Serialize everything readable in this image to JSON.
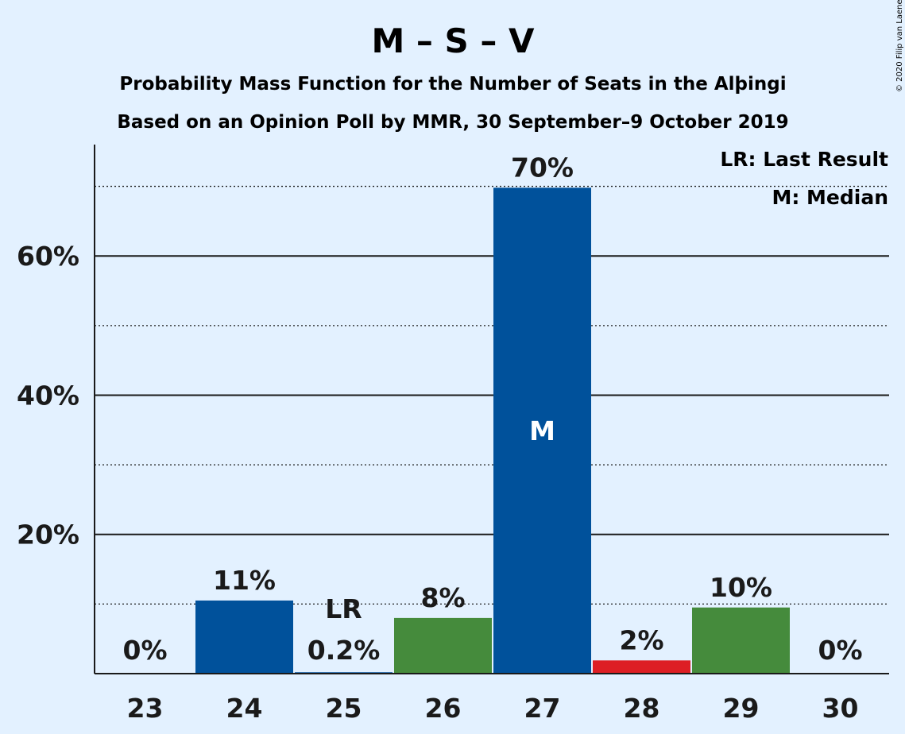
{
  "chart_data": {
    "type": "bar",
    "title": "M – S – V",
    "subtitle_1": "Probability Mass Function for the Number of Seats in the Alþingi",
    "subtitle_2": "Based on an Opinion Poll by MMR, 30 September–9 October 2019",
    "copyright": "© 2020 Filip van Laenen",
    "categories": [
      "23",
      "24",
      "25",
      "26",
      "27",
      "28",
      "29",
      "30"
    ],
    "values": [
      0,
      10.5,
      0.2,
      8,
      69.8,
      1.9,
      9.5,
      0
    ],
    "data_labels": [
      "0%",
      "11%",
      "0.2%",
      "8%",
      "70%",
      "2%",
      "10%",
      "0%"
    ],
    "bar_colors": [
      "#00519b",
      "#00519b",
      "#00519b",
      "#458b3c",
      "#00519b",
      "#dd1e24",
      "#458b3c",
      "#00519b"
    ],
    "ylim": [
      0,
      76
    ],
    "y_major_ticks": [
      20,
      40,
      60
    ],
    "y_tick_labels": [
      "20%",
      "40%",
      "60%"
    ],
    "y_minor_ticks": [
      10,
      30,
      50,
      70
    ],
    "last_result": {
      "category": "25",
      "marker": "LR"
    },
    "median": {
      "category": "27",
      "marker": "M"
    },
    "legend": {
      "placement": "top-right",
      "entries": [
        "LR: Last Result",
        "M: Median"
      ]
    },
    "colors": {
      "background": "#e3f1ff",
      "text": "#1a1a1a"
    }
  }
}
